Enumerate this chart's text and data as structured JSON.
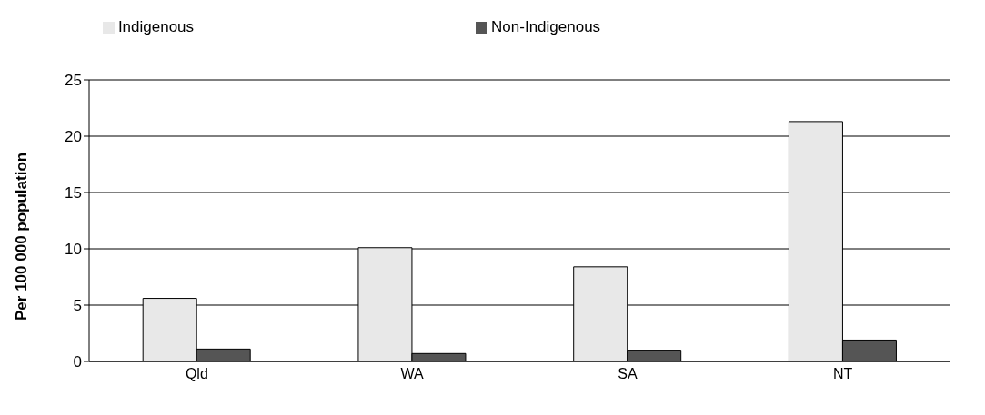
{
  "chart_data": {
    "type": "bar",
    "ylabel": "Per 100 000 population",
    "categories": [
      "Qld",
      "WA",
      "SA",
      "NT"
    ],
    "series": [
      {
        "name": "Indigenous",
        "color": "#e8e8e8",
        "values": [
          5.6,
          10.1,
          8.4,
          21.3
        ]
      },
      {
        "name": "Non-Indigenous",
        "color": "#555555",
        "values": [
          1.1,
          0.7,
          1.0,
          1.9
        ]
      }
    ],
    "ylim": [
      0,
      25
    ],
    "yticks": [
      0,
      5,
      10,
      15,
      20,
      25
    ],
    "grid": "y",
    "legend": "top"
  }
}
